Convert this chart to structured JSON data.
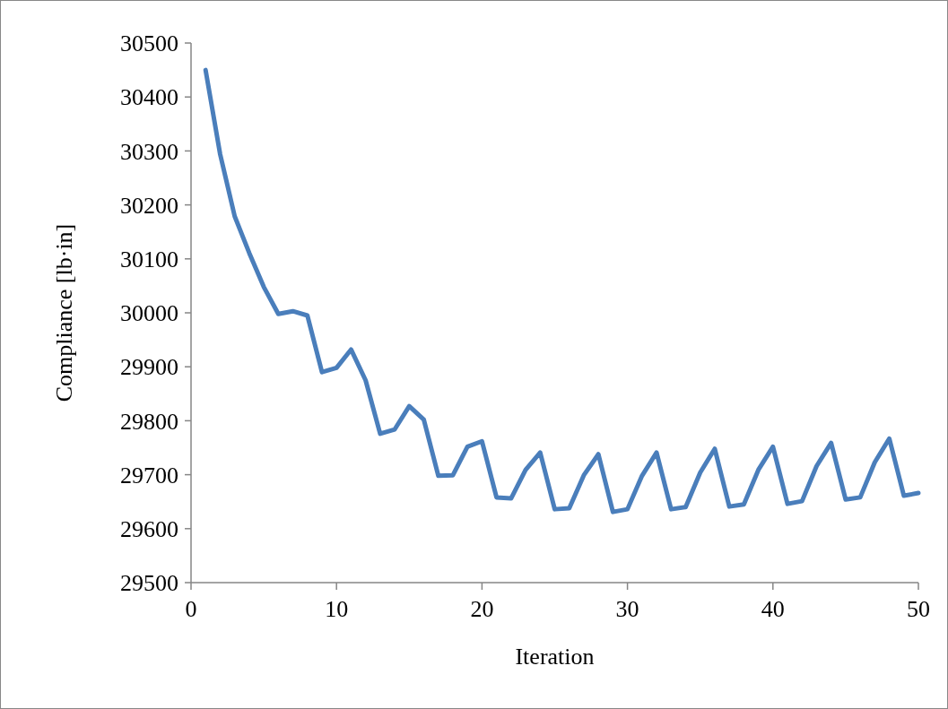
{
  "chart_data": {
    "type": "line",
    "xlabel": "Iteration",
    "ylabel": "Compliance [lb·in]",
    "x": [
      1,
      2,
      3,
      4,
      5,
      6,
      7,
      8,
      9,
      10,
      11,
      12,
      13,
      14,
      15,
      16,
      17,
      18,
      19,
      20,
      21,
      22,
      23,
      24,
      25,
      26,
      27,
      28,
      29,
      30,
      31,
      32,
      33,
      34,
      35,
      36,
      37,
      38,
      39,
      40,
      41,
      42,
      43,
      44,
      45,
      46,
      47,
      48,
      49,
      50
    ],
    "series": [
      {
        "color": "#4a7ebb",
        "values": [
          30450,
          30294,
          30179,
          30111,
          30048,
          29998,
          30003,
          29995,
          29890,
          29898,
          29932,
          29875,
          29776,
          29784,
          29827,
          29802,
          29698,
          29699,
          29752,
          29762,
          29658,
          29656,
          29709,
          29741,
          29636,
          29638,
          29699,
          29738,
          29631,
          29636,
          29698,
          29741,
          29636,
          29640,
          29704,
          29748,
          29641,
          29645,
          29709,
          29752,
          29646,
          29651,
          29716,
          29759,
          29654,
          29658,
          29723,
          29767,
          29661,
          29666
        ]
      }
    ],
    "xlim": [
      0,
      50
    ],
    "xticks": [
      0,
      10,
      20,
      30,
      40,
      50
    ],
    "ylim": [
      29500,
      30500
    ],
    "yticks": [
      29500,
      29600,
      29700,
      29800,
      29900,
      30000,
      30100,
      30200,
      30300,
      30400,
      30500
    ],
    "grid": false,
    "marker": "none",
    "line_style": "solid"
  }
}
